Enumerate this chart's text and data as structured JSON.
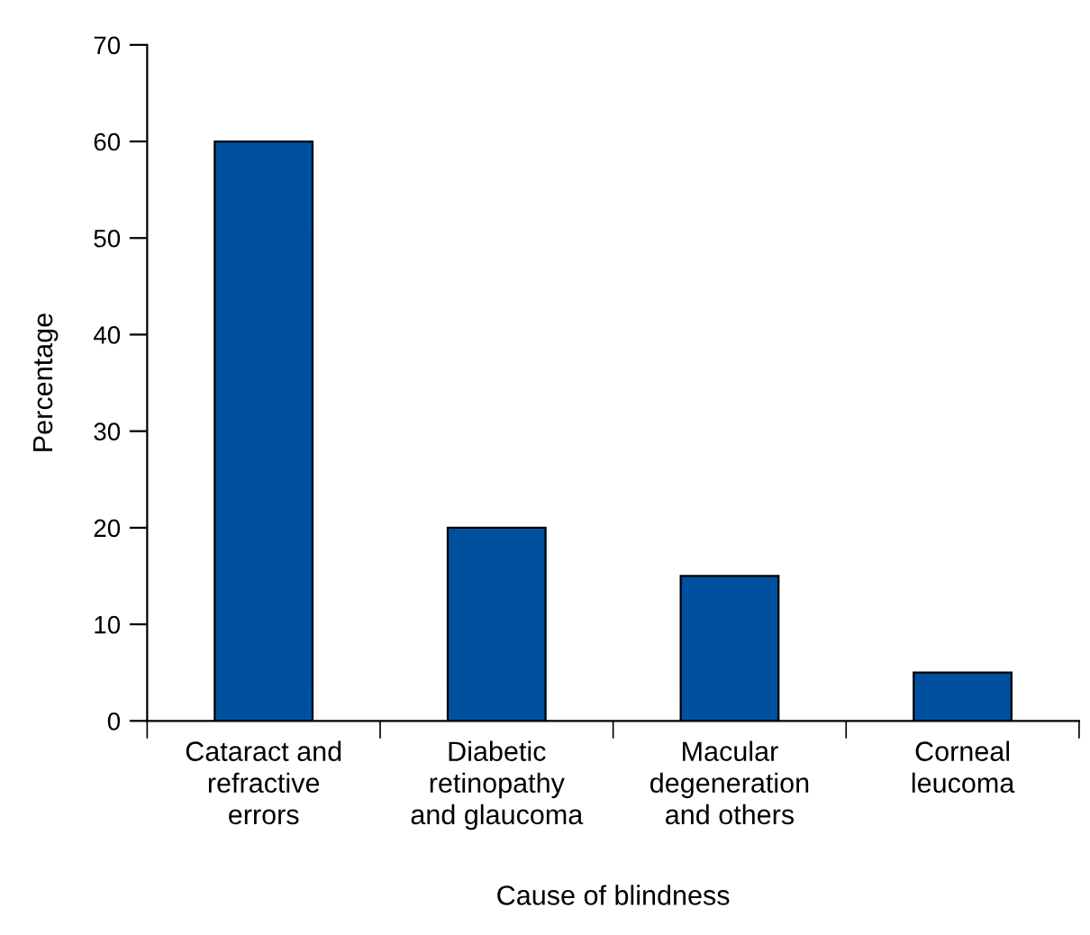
{
  "chart_data": {
    "type": "bar",
    "xlabel": "Cause of blindness",
    "ylabel": "Percentage",
    "categories": [
      "Cataract and\nrefractive\nerrors",
      "Diabetic\nretinopathy\nand glaucoma",
      "Macular\ndegeneration\nand others",
      "Corneal\nleucoma"
    ],
    "values": [
      60,
      20,
      15,
      5
    ],
    "color": "#0050a0",
    "ylim": [
      0,
      70
    ],
    "yticks": [
      0,
      10,
      20,
      30,
      40,
      50,
      60,
      70
    ],
    "grid": false
  }
}
